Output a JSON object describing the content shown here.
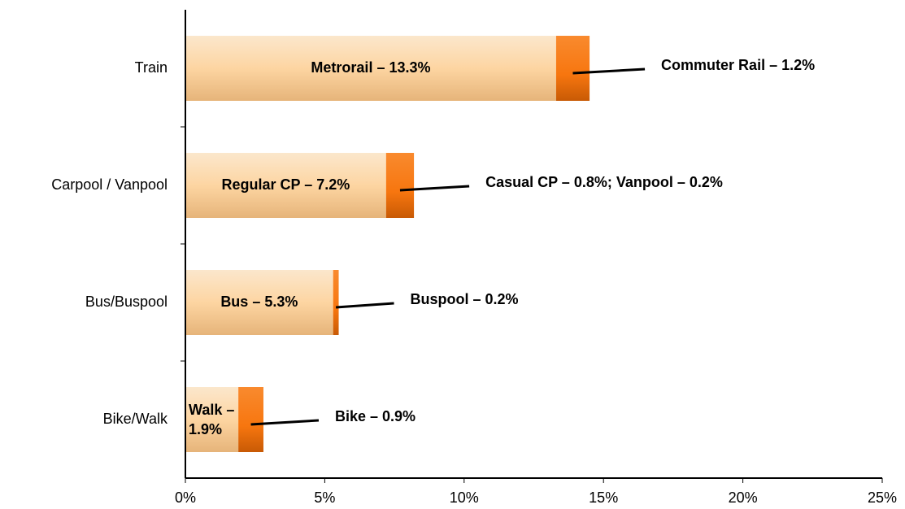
{
  "chart_data": {
    "type": "stacked_bar_horizontal",
    "categories": [
      "Train",
      "Carpool / Vanpool",
      "Bus/Buspool",
      "Bike/Walk"
    ],
    "series": [
      {
        "color": "#fdd5a2",
        "values": [
          13.3,
          7.2,
          5.3,
          1.9
        ],
        "value_labels": [
          "Metrorail – 13.3%",
          "Regular CP – 7.2%",
          "Bus – 5.3%",
          "Walk – 1.9%"
        ]
      },
      {
        "color": "#f7760f",
        "values": [
          1.2,
          1.0,
          0.2,
          0.9
        ],
        "value_labels": [
          "Commuter Rail – 1.2%",
          "Casual CP – 0.8%; Vanpool – 0.2%",
          "Buspool – 0.2%",
          "Bike – 0.9%"
        ]
      }
    ],
    "xlim": [
      0,
      25
    ],
    "xticks": [
      {
        "value": 0,
        "label": "0%"
      },
      {
        "value": 5,
        "label": "5%"
      },
      {
        "value": 10,
        "label": "10%"
      },
      {
        "value": 15,
        "label": "15%"
      },
      {
        "value": 20,
        "label": "20%"
      },
      {
        "value": 25,
        "label": "25%"
      }
    ]
  }
}
